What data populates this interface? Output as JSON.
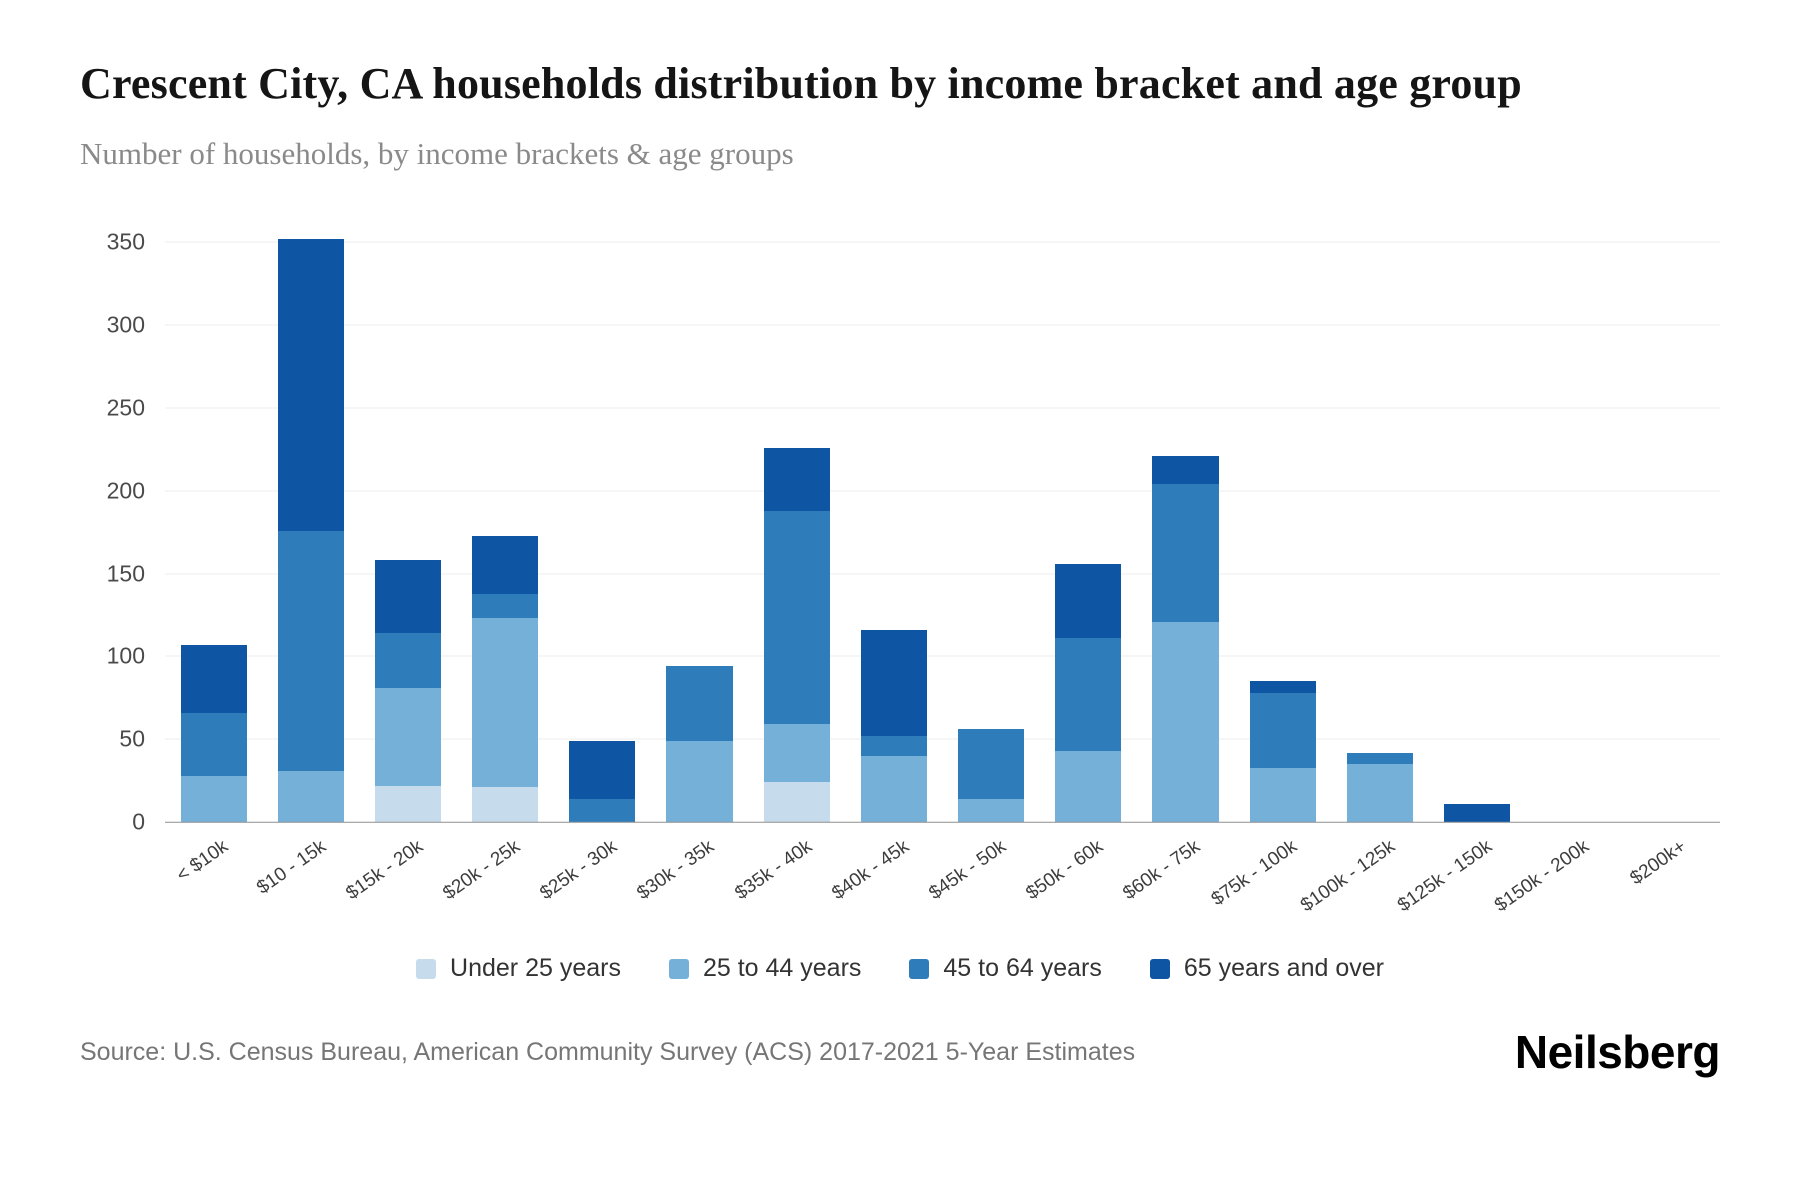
{
  "title": "Crescent City, CA households distribution by income bracket and age group",
  "subtitle": "Number of households, by income brackets & age groups",
  "source": "Source: U.S. Census Bureau, American Community Survey (ACS) 2017-2021 5-Year Estimates",
  "brand": "Neilsberg",
  "chart_data": {
    "type": "bar",
    "stacked": true,
    "title": "Crescent City, CA households distribution by income bracket and age group",
    "xlabel": "",
    "ylabel": "Number of households",
    "ylim": [
      0,
      350
    ],
    "yticks": [
      0,
      50,
      100,
      150,
      200,
      250,
      300,
      350
    ],
    "grid": true,
    "legend_position": "bottom",
    "categories": [
      "< $10k",
      "$10 - 15k",
      "$15k - 20k",
      "$20k - 25k",
      "$25k - 30k",
      "$30k - 35k",
      "$35k - 40k",
      "$40k - 45k",
      "$45k - 50k",
      "$50k - 60k",
      "$60k - 75k",
      "$75k - 100k",
      "$100k - 125k",
      "$125k - 150k",
      "$150k - 200k",
      "$200k+"
    ],
    "series": [
      {
        "name": "Under 25 years",
        "color": "#c6dcec",
        "values": [
          0,
          0,
          22,
          21,
          0,
          0,
          24,
          0,
          0,
          0,
          0,
          0,
          0,
          0,
          0,
          0
        ]
      },
      {
        "name": "25 to 44 years",
        "color": "#74b0d8",
        "values": [
          28,
          31,
          59,
          102,
          0,
          49,
          35,
          40,
          14,
          43,
          121,
          33,
          35,
          0,
          0,
          0
        ]
      },
      {
        "name": "45 to 64 years",
        "color": "#2f7cba",
        "values": [
          38,
          145,
          33,
          15,
          14,
          45,
          129,
          12,
          42,
          68,
          83,
          45,
          7,
          0,
          0,
          0
        ]
      },
      {
        "name": "65 years and over",
        "color": "#0e56a3",
        "values": [
          41,
          176,
          44,
          35,
          35,
          0,
          38,
          64,
          0,
          45,
          17,
          7,
          0,
          11,
          0,
          0
        ]
      }
    ]
  }
}
